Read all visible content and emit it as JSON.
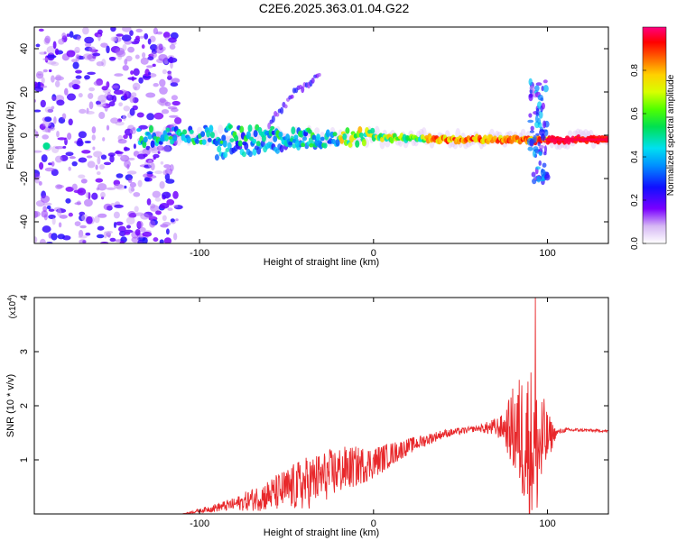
{
  "title": "C2E6.2025.363.01.04.G22",
  "chart_data": [
    {
      "type": "heatmap",
      "xlabel": "Height of straight line (km)",
      "ylabel": "Frequency (Hz)",
      "xlim": [
        -195,
        135
      ],
      "ylim": [
        -50,
        50
      ],
      "xticks": [
        -100,
        0,
        100
      ],
      "yticks": [
        -40,
        -20,
        0,
        20,
        40
      ],
      "colorbar": {
        "label": "Normalized spectral amplitude",
        "range": [
          0.0,
          1.0
        ],
        "ticks": [
          0.0,
          0.2,
          0.4,
          0.6,
          0.8
        ]
      },
      "features": {
        "noise_region_x": [
          -195,
          -120
        ],
        "main_line": [
          [
            -135,
            -1
          ],
          [
            -110,
            0
          ],
          [
            -60,
            0
          ],
          [
            -30,
            -1
          ],
          [
            0,
            -1
          ],
          [
            50,
            -2
          ],
          [
            90,
            -2
          ],
          [
            135,
            -2
          ]
        ],
        "upper_branch": [
          [
            -60,
            5
          ],
          [
            -45,
            20
          ],
          [
            -30,
            28
          ]
        ],
        "lower_branch": [
          [
            -90,
            -8
          ],
          [
            -55,
            -5
          ],
          [
            -30,
            -3
          ]
        ],
        "burst_x": 95,
        "burst_freq_range": [
          -22,
          25
        ]
      }
    },
    {
      "type": "line",
      "xlabel": "Height of straight line (km)",
      "ylabel": "SNR (10 * v/v)",
      "yscale_label": "(x10",
      "yscale_exp": "4",
      "xlim": [
        -195,
        135
      ],
      "ylim": [
        0,
        4
      ],
      "xticks": [
        -100,
        0,
        100
      ],
      "yticks": [
        1,
        2,
        3,
        4
      ],
      "color": "#e8282b",
      "envelope": {
        "x": [
          -195,
          -110,
          -100,
          -80,
          -60,
          -40,
          -20,
          0,
          20,
          40,
          60,
          75,
          80,
          85,
          90,
          95,
          100,
          105,
          110,
          120,
          135
        ],
        "mean": [
          0.0,
          0.0,
          0.06,
          0.18,
          0.35,
          0.55,
          0.8,
          0.95,
          1.25,
          1.48,
          1.58,
          1.6,
          1.55,
          1.45,
          1.3,
          1.2,
          1.4,
          1.5,
          1.55,
          1.55,
          1.53
        ],
        "jitter": [
          0.0,
          0.0,
          0.04,
          0.12,
          0.3,
          0.5,
          0.45,
          0.3,
          0.15,
          0.08,
          0.05,
          0.25,
          0.8,
          1.2,
          1.5,
          1.3,
          0.5,
          0.06,
          0.04,
          0.03,
          0.02
        ]
      },
      "peak": {
        "x": 93,
        "y": 4.0
      }
    }
  ]
}
